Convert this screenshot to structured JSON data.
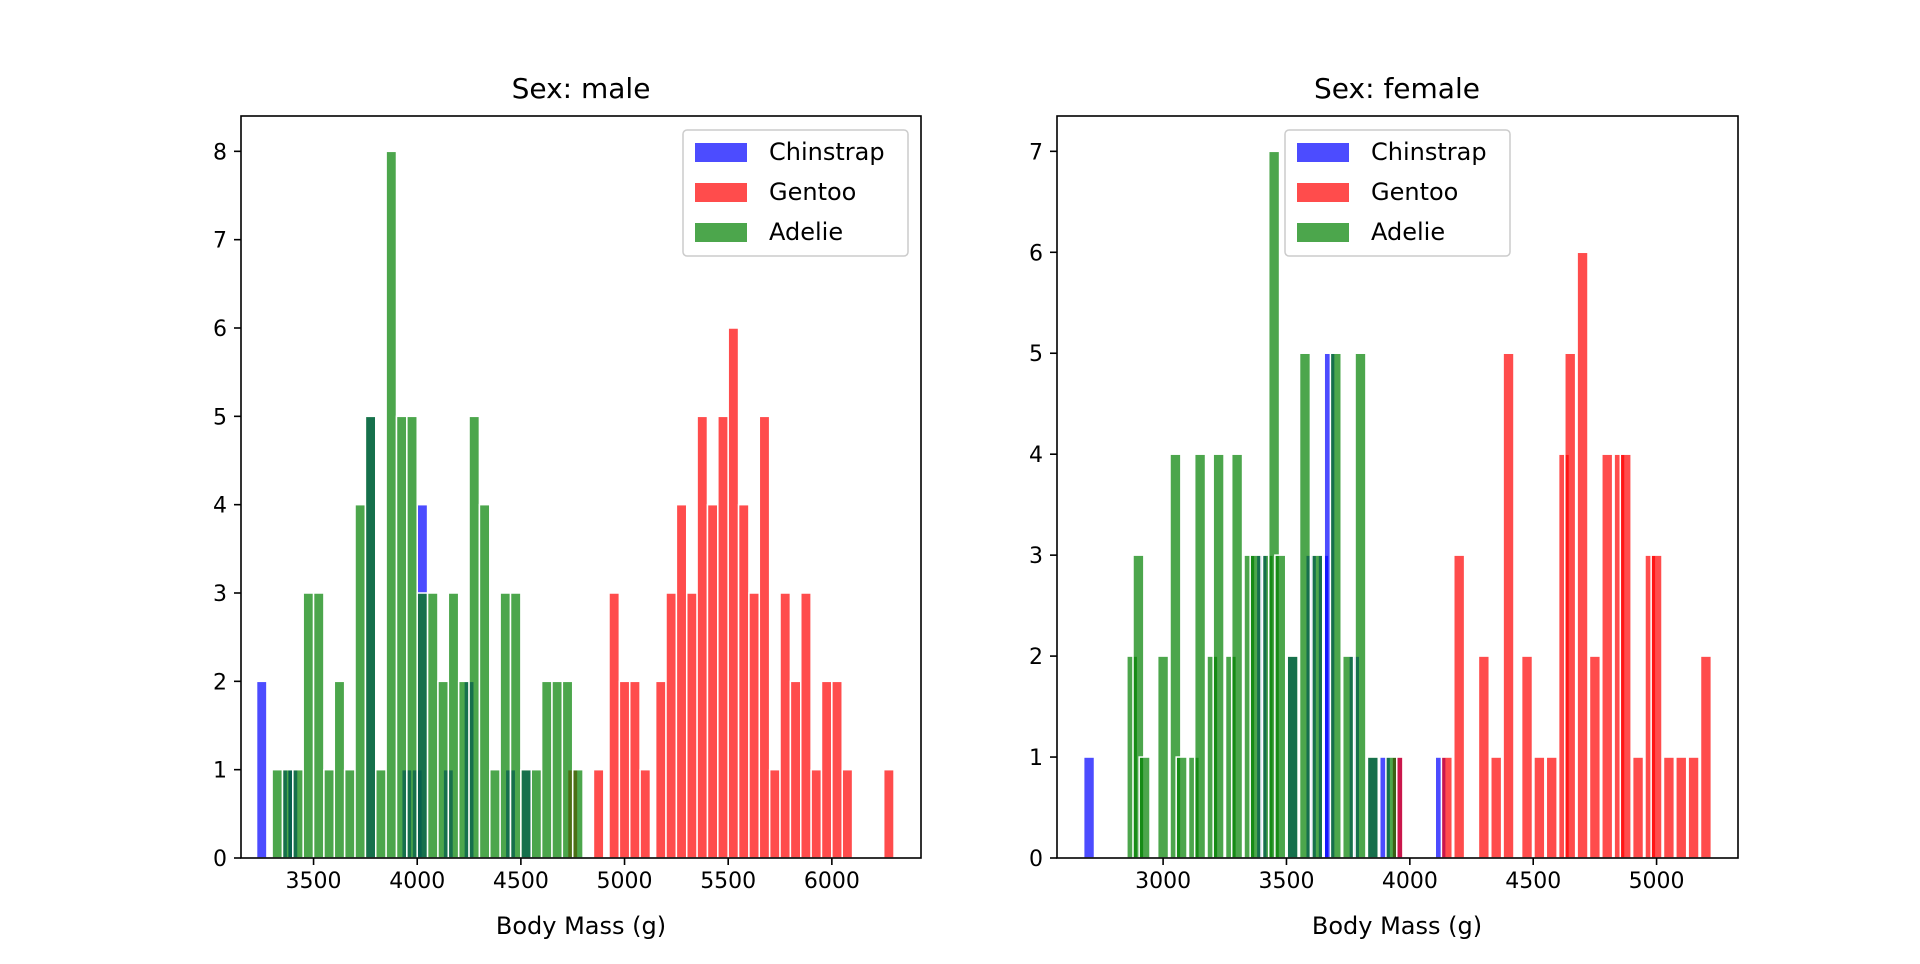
{
  "chart_data": [
    {
      "type": "bar",
      "title": "Sex: male",
      "xlabel": "Body Mass (g)",
      "ylabel": "",
      "xlim": [
        3150,
        6430
      ],
      "ylim": [
        0,
        8.4
      ],
      "xticks": [
        3500,
        4000,
        4500,
        5000,
        5500,
        6000
      ],
      "yticks": [
        0,
        1,
        2,
        3,
        4,
        5,
        6,
        7,
        8
      ],
      "grid": false,
      "legend": {
        "position": "top-right",
        "entries": [
          "Chinstrap",
          "Gentoo",
          "Adelie"
        ]
      },
      "bin_width": 50,
      "series": [
        {
          "name": "Chinstrap",
          "color": "#0000ff",
          "bins": [
            [
              3250,
              2
            ],
            [
              3375,
              1
            ],
            [
              3400,
              1
            ],
            [
              3775,
              5
            ],
            [
              3950,
              1
            ],
            [
              4000,
              1
            ],
            [
              4025,
              4
            ],
            [
              4150,
              1
            ],
            [
              4250,
              2
            ],
            [
              4450,
              1
            ],
            [
              4525,
              1
            ]
          ]
        },
        {
          "name": "Gentoo",
          "color": "#ff0000",
          "bins": [
            [
              4750,
              1
            ],
            [
              4875,
              1
            ],
            [
              4950,
              3
            ],
            [
              5000,
              2
            ],
            [
              5050,
              2
            ],
            [
              5100,
              1
            ],
            [
              5175,
              2
            ],
            [
              5225,
              3
            ],
            [
              5275,
              4
            ],
            [
              5325,
              3
            ],
            [
              5375,
              5
            ],
            [
              5425,
              4
            ],
            [
              5475,
              5
            ],
            [
              5525,
              6
            ],
            [
              5575,
              4
            ],
            [
              5625,
              3
            ],
            [
              5675,
              5
            ],
            [
              5725,
              1
            ],
            [
              5775,
              3
            ],
            [
              5825,
              2
            ],
            [
              5875,
              3
            ],
            [
              5925,
              1
            ],
            [
              5975,
              2
            ],
            [
              6025,
              2
            ],
            [
              6075,
              1
            ],
            [
              6275,
              1
            ]
          ]
        },
        {
          "name": "Adelie",
          "color": "#008000",
          "bins": [
            [
              3325,
              1
            ],
            [
              3375,
              1
            ],
            [
              3425,
              1
            ],
            [
              3475,
              3
            ],
            [
              3525,
              3
            ],
            [
              3575,
              1
            ],
            [
              3625,
              2
            ],
            [
              3675,
              1
            ],
            [
              3725,
              4
            ],
            [
              3775,
              5
            ],
            [
              3825,
              1
            ],
            [
              3875,
              8
            ],
            [
              3925,
              5
            ],
            [
              3975,
              5
            ],
            [
              4025,
              3
            ],
            [
              4075,
              3
            ],
            [
              4125,
              2
            ],
            [
              4175,
              3
            ],
            [
              4225,
              2
            ],
            [
              4275,
              5
            ],
            [
              4325,
              4
            ],
            [
              4375,
              1
            ],
            [
              4425,
              3
            ],
            [
              4475,
              3
            ],
            [
              4525,
              1
            ],
            [
              4575,
              1
            ],
            [
              4625,
              2
            ],
            [
              4675,
              2
            ],
            [
              4725,
              2
            ],
            [
              4775,
              1
            ]
          ]
        }
      ]
    },
    {
      "type": "bar",
      "title": "Sex: female",
      "xlabel": "Body Mass (g)",
      "ylabel": "",
      "xlim": [
        2570,
        5330
      ],
      "ylim": [
        0,
        7.35
      ],
      "xticks": [
        3000,
        3500,
        4000,
        4500,
        5000
      ],
      "yticks": [
        0,
        1,
        2,
        3,
        4,
        5,
        6,
        7
      ],
      "grid": false,
      "legend": {
        "position": "top-center",
        "entries": [
          "Chinstrap",
          "Gentoo",
          "Adelie"
        ]
      },
      "bin_width": 44,
      "series": [
        {
          "name": "Chinstrap",
          "color": "#0000ff",
          "bins": [
            [
              2700,
              1
            ],
            [
              3400,
              3
            ],
            [
              3525,
              2
            ],
            [
              3600,
              3
            ],
            [
              3650,
              3
            ],
            [
              3675,
              5
            ],
            [
              3775,
              2
            ],
            [
              3850,
              1
            ],
            [
              3900,
              1
            ],
            [
              3950,
              1
            ],
            [
              4125,
              1
            ]
          ]
        },
        {
          "name": "Gentoo",
          "color": "#ff0000",
          "bins": [
            [
              3950,
              1
            ],
            [
              4150,
              1
            ],
            [
              4200,
              3
            ],
            [
              4300,
              2
            ],
            [
              4350,
              1
            ],
            [
              4400,
              5
            ],
            [
              4475,
              2
            ],
            [
              4525,
              1
            ],
            [
              4575,
              1
            ],
            [
              4625,
              4
            ],
            [
              4650,
              5
            ],
            [
              4700,
              6
            ],
            [
              4750,
              2
            ],
            [
              4800,
              4
            ],
            [
              4850,
              4
            ],
            [
              4875,
              4
            ],
            [
              4925,
              1
            ],
            [
              4975,
              3
            ],
            [
              5000,
              3
            ],
            [
              5050,
              1
            ],
            [
              5100,
              1
            ],
            [
              5150,
              1
            ],
            [
              5200,
              2
            ]
          ]
        },
        {
          "name": "Adelie",
          "color": "#008000",
          "bins": [
            [
              2875,
              2
            ],
            [
              2900,
              3
            ],
            [
              2925,
              1
            ],
            [
              3000,
              2
            ],
            [
              3050,
              4
            ],
            [
              3075,
              1
            ],
            [
              3125,
              1
            ],
            [
              3150,
              4
            ],
            [
              3200,
              2
            ],
            [
              3225,
              4
            ],
            [
              3275,
              2
            ],
            [
              3300,
              4
            ],
            [
              3350,
              3
            ],
            [
              3375,
              3
            ],
            [
              3425,
              3
            ],
            [
              3450,
              7
            ],
            [
              3475,
              3
            ],
            [
              3525,
              2
            ],
            [
              3575,
              5
            ],
            [
              3625,
              3
            ],
            [
              3700,
              5
            ],
            [
              3750,
              2
            ],
            [
              3800,
              5
            ],
            [
              3850,
              1
            ],
            [
              3925,
              1
            ]
          ]
        }
      ]
    }
  ]
}
